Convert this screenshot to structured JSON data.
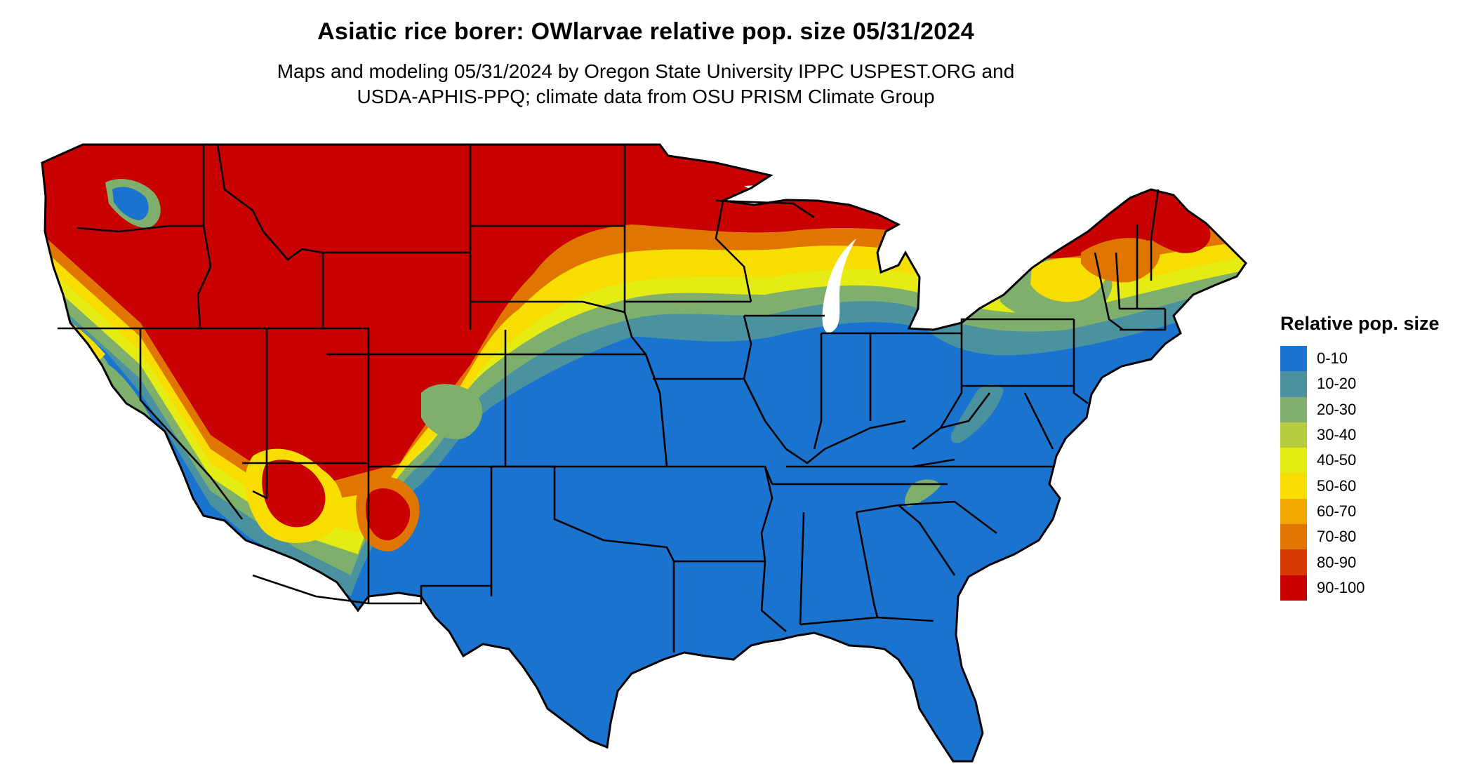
{
  "title": "Asiatic rice borer: OWlarvae relative pop. size 05/31/2024",
  "subtitle_lines": [
    "Maps and modeling 05/31/2024 by Oregon State University IPPC USPEST.ORG and",
    "USDA-APHIS-PPQ; climate data from OSU PRISM Climate Group"
  ],
  "legend": {
    "title": "Relative pop. size",
    "items": [
      {
        "label": "0-10",
        "color": "#1A74CF"
      },
      {
        "label": "10-20",
        "color": "#4A92A0"
      },
      {
        "label": "20-30",
        "color": "#7EAF6C"
      },
      {
        "label": "30-40",
        "color": "#B5CC3C"
      },
      {
        "label": "40-50",
        "color": "#E4EC14"
      },
      {
        "label": "50-60",
        "color": "#F7DD00"
      },
      {
        "label": "60-70",
        "color": "#EEA800"
      },
      {
        "label": "70-80",
        "color": "#E07600"
      },
      {
        "label": "80-90",
        "color": "#D63A00"
      },
      {
        "label": "90-100",
        "color": "#C80000"
      }
    ]
  },
  "map": {
    "region": "Contiguous United States",
    "layers": [
      "relative-pop-size-raster",
      "state-boundaries"
    ]
  }
}
